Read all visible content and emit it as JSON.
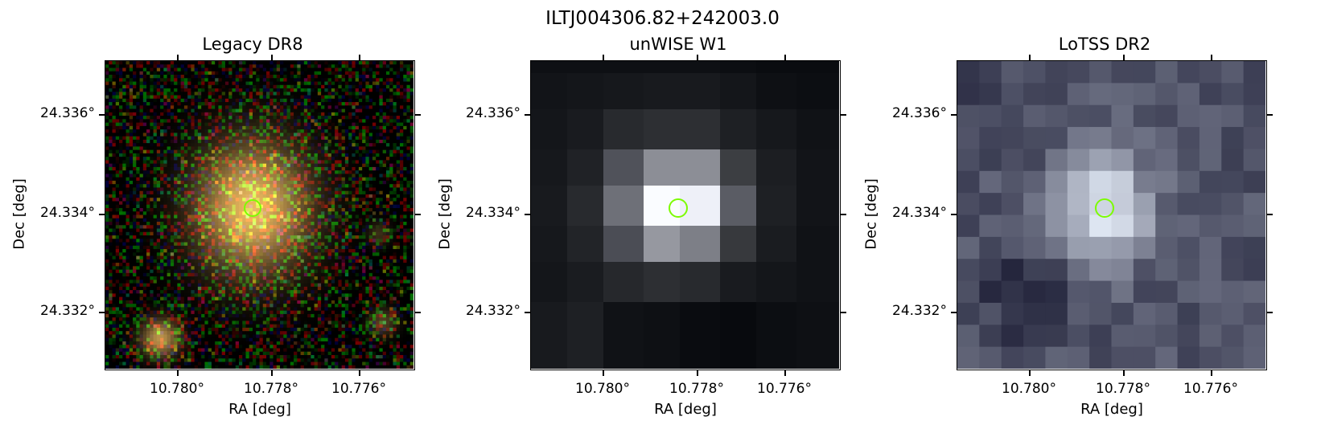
{
  "figure": {
    "title": "ILTJ004306.82+242003.0",
    "colors": {
      "marker": "#7cfc00",
      "frame": "#000000"
    }
  },
  "panels": [
    {
      "title": "Legacy DR8",
      "xlabel": "RA [deg]",
      "ylabel": "Dec [deg]",
      "xticks": [
        "10.780°",
        "10.778°",
        "10.776°"
      ],
      "yticks": [
        "24.336°",
        "24.334°",
        "24.332°"
      ],
      "image_kind": "optical-rgb"
    },
    {
      "title": "unWISE W1",
      "xlabel": "RA [deg]",
      "ylabel": "Dec [deg]",
      "xticks": [
        "10.780°",
        "10.778°",
        "10.776°"
      ],
      "yticks": [
        "24.336°",
        "24.334°",
        "24.332°"
      ],
      "image_kind": "infrared-grayscale"
    },
    {
      "title": "LoTSS DR2",
      "xlabel": "RA [deg]",
      "ylabel": "Dec [deg]",
      "xticks": [
        "10.780°",
        "10.778°",
        "10.776°"
      ],
      "yticks": [
        "24.336°",
        "24.334°",
        "24.332°"
      ],
      "image_kind": "radio-grayscale"
    }
  ]
}
